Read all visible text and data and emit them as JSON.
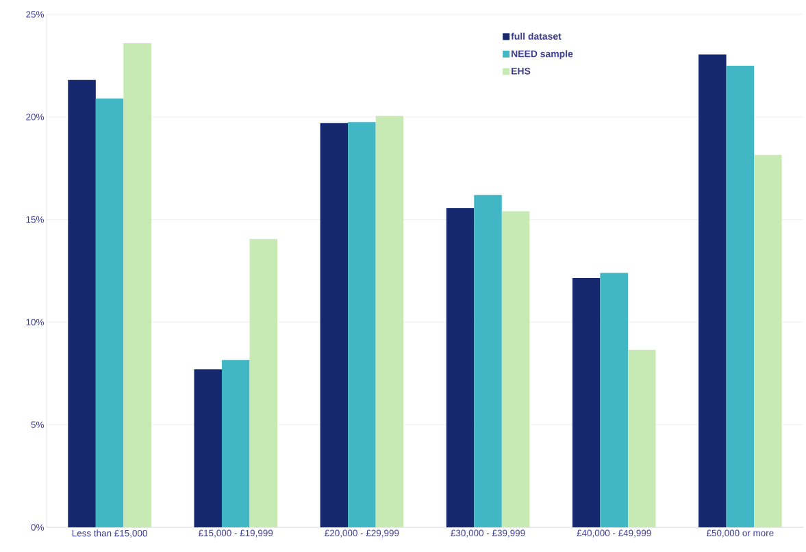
{
  "chart_data": {
    "type": "bar",
    "categories": [
      "Less than £15,000",
      "£15,000 - £19,999",
      "£20,000 - £29,999",
      "£30,000 - £39,999",
      "£40,000 - £49,999",
      "£50,000 or more"
    ],
    "series": [
      {
        "name": "full dataset",
        "color": "#16286e",
        "values": [
          21.8,
          7.7,
          19.7,
          15.55,
          12.15,
          23.05
        ]
      },
      {
        "name": "NEED sample",
        "color": "#41b6c4",
        "values": [
          20.9,
          8.15,
          19.75,
          16.2,
          12.4,
          22.5
        ]
      },
      {
        "name": "EHS",
        "color": "#c7e9b4",
        "values": [
          23.6,
          14.05,
          20.05,
          15.4,
          8.65,
          18.15
        ]
      }
    ],
    "ylim": [
      0,
      25
    ],
    "yticks": [
      {
        "value": 0,
        "label": "0%"
      },
      {
        "value": 5,
        "label": "5%"
      },
      {
        "value": 10,
        "label": "10%"
      },
      {
        "value": 15,
        "label": "15%"
      },
      {
        "value": 20,
        "label": "20%"
      },
      {
        "value": 25,
        "label": "25%"
      }
    ],
    "grid": "y",
    "legend": "top right"
  }
}
